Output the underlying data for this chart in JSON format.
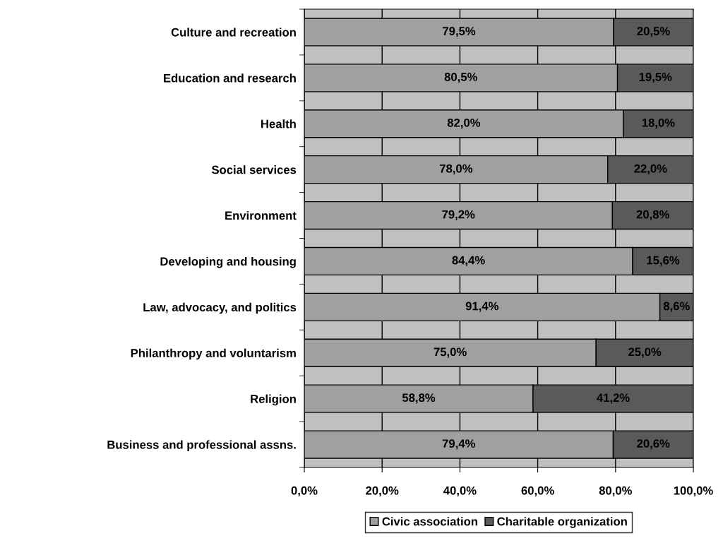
{
  "chart_data": {
    "type": "bar",
    "orientation": "horizontal",
    "stacked": true,
    "categories": [
      "Culture and recreation",
      "Education and research",
      "Health",
      "Social services",
      "Environment",
      "Developing and housing",
      "Law, advocacy, and politics",
      "Philanthropy and voluntarism",
      "Religion",
      "Business and professional assns."
    ],
    "series": [
      {
        "name": "Civic association",
        "color": "#a0a0a0",
        "values": [
          79.5,
          80.5,
          82.0,
          78.0,
          79.2,
          84.4,
          91.4,
          75.0,
          58.8,
          79.4
        ],
        "value_labels": [
          "79,5%",
          "80,5%",
          "82,0%",
          "78,0%",
          "79,2%",
          "84,4%",
          "91,4%",
          "75,0%",
          "58,8%",
          "79,4%"
        ]
      },
      {
        "name": "Charitable organization",
        "color": "#5a5a5a",
        "values": [
          20.5,
          19.5,
          18.0,
          22.0,
          20.8,
          15.6,
          8.6,
          25.0,
          41.2,
          20.6
        ],
        "value_labels": [
          "20,5%",
          "19,5%",
          "18,0%",
          "22,0%",
          "20,8%",
          "15,6%",
          "8,6%",
          "25,0%",
          "41,2%",
          "20,6%"
        ]
      }
    ],
    "xlim": [
      0,
      100
    ],
    "xticks": [
      {
        "value": 0,
        "label": "0,0%"
      },
      {
        "value": 20,
        "label": "20,0%"
      },
      {
        "value": 40,
        "label": "40,0%"
      },
      {
        "value": 60,
        "label": "60,0%"
      },
      {
        "value": 80,
        "label": "80,0%"
      },
      {
        "value": 100,
        "label": "100,0%"
      }
    ],
    "grid": "x",
    "legend": "bottom"
  }
}
